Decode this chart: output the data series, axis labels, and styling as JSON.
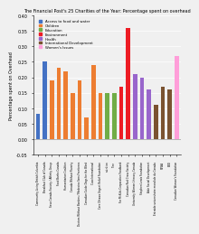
{
  "title": "The Financial Post's 25 Charities of the Year: Percentage spent on overhead",
  "ylabel": "Percentage spent on Overhead",
  "bars": [
    {
      "label": "Community Living British Columbia",
      "value": 0.08,
      "color": "#4472c4"
    },
    {
      "label": "Breakfast Club of Canada",
      "value": 0.25,
      "color": "#4472c4"
    },
    {
      "label": "Seva Canada Society / Affinity Group",
      "value": 0.19,
      "color": "#ed7d31"
    },
    {
      "label": "Food Banks Canada",
      "value": 0.23,
      "color": "#ed7d31"
    },
    {
      "label": "Humanitarian Coalition",
      "value": 0.22,
      "color": "#ed7d31"
    },
    {
      "label": "Canada Without Poverty",
      "value": 0.15,
      "color": "#ed7d31"
    },
    {
      "label": "Doctors Without Borders / Medecins Sans Frontieres",
      "value": 0.19,
      "color": "#ed7d31"
    },
    {
      "label": "Canadian Guide Dogs for the Blind",
      "value": 0.07,
      "color": "#ed7d31"
    },
    {
      "label": "Cuso International",
      "value": 0.24,
      "color": "#ed7d31"
    },
    {
      "label": "Care Ottawa Urgent Relief Foundation",
      "value": 0.15,
      "color": "#ed7d31"
    },
    {
      "label": "nutrition",
      "value": 0.15,
      "color": "#70ad47"
    },
    {
      "label": "Tree",
      "value": 0.15,
      "color": "#70ad47"
    },
    {
      "label": "For McKids Corporation Foodbank",
      "value": 0.17,
      "color": "#ed1c24"
    },
    {
      "label": "Canadian Red Cross Society",
      "value": 0.36,
      "color": "#ed1c24"
    },
    {
      "label": "University Women Literacy Canada",
      "value": 0.21,
      "color": "#9966cc"
    },
    {
      "label": "Stephen Lewis Foundation",
      "value": 0.2,
      "color": "#9966cc"
    },
    {
      "label": "Aide Social Development",
      "value": 0.16,
      "color": "#9966cc"
    },
    {
      "label": "Entraide universitaire mondiale du Canada",
      "value": 0.11,
      "color": "#7a5230"
    },
    {
      "label": "SEWA",
      "value": 0.17,
      "color": "#7a5230"
    },
    {
      "label": "EDD",
      "value": 0.16,
      "color": "#7a5230"
    },
    {
      "label": "Canadian Women's Foundation",
      "value": 0.27,
      "color": "#ff9ed9"
    }
  ],
  "legend": [
    {
      "label": "Access to food and water",
      "color": "#4472c4"
    },
    {
      "label": "Children",
      "color": "#ed7d31"
    },
    {
      "label": "Education",
      "color": "#70ad47"
    },
    {
      "label": "Environment",
      "color": "#ed1c24"
    },
    {
      "label": "Health",
      "color": "#9966cc"
    },
    {
      "label": "International Development",
      "color": "#7a5230"
    },
    {
      "label": "Women's Issues",
      "color": "#ff9ed9"
    }
  ],
  "ylim": [
    -0.05,
    0.4
  ],
  "yticks": [
    -0.05,
    0.0,
    0.05,
    0.1,
    0.15,
    0.2,
    0.25,
    0.3,
    0.35,
    0.4
  ],
  "bg_color": "#f0f0f0"
}
